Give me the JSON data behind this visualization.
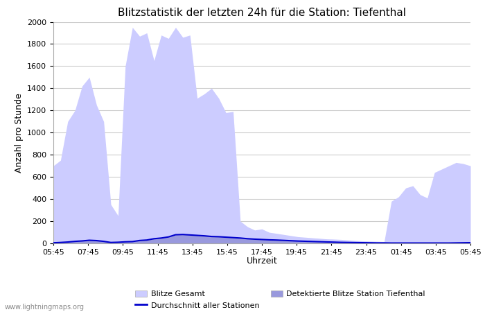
{
  "title": "Blitzstatistik der letzten 24h für die Station: Tiefenthal",
  "ylabel": "Anzahl pro Stunde",
  "xlabel": "Uhrzeit",
  "watermark": "www.lightningmaps.org",
  "x_labels": [
    "05:45",
    "07:45",
    "09:45",
    "11:45",
    "13:45",
    "15:45",
    "17:45",
    "19:45",
    "21:45",
    "23:45",
    "01:45",
    "03:45",
    "05:45"
  ],
  "ylim": [
    0,
    2000
  ],
  "yticks": [
    0,
    200,
    400,
    600,
    800,
    1000,
    1200,
    1400,
    1600,
    1800,
    2000
  ],
  "bg_color": "#ffffff",
  "grid_color": "#cccccc",
  "fill_color_gesamt": "#ccccff",
  "fill_color_station": "#9999dd",
  "line_color": "#0000cc",
  "legend_label_gesamt": "Blitze Gesamt",
  "legend_label_station": "Detektierte Blitze Station Tiefenthal",
  "legend_label_avg": "Durchschnitt aller Stationen",
  "gesamt_values": [
    700,
    750,
    1100,
    1200,
    1420,
    1500,
    1250,
    1100,
    350,
    250,
    1600,
    1950,
    1870,
    1900,
    1650,
    1880,
    1850,
    1950,
    1860,
    1880,
    1310,
    1350,
    1400,
    1310,
    1180,
    1190,
    200,
    150,
    120,
    130,
    100,
    90,
    80,
    70,
    60,
    55,
    50,
    45,
    40,
    38,
    35,
    30,
    25,
    22,
    20,
    18,
    16,
    380,
    420,
    500,
    520,
    440,
    410,
    640,
    670,
    700,
    730,
    720,
    700
  ],
  "station_values": [
    5,
    8,
    12,
    18,
    22,
    28,
    25,
    18,
    8,
    10,
    14,
    16,
    26,
    30,
    42,
    48,
    58,
    78,
    80,
    76,
    72,
    68,
    62,
    60,
    56,
    52,
    48,
    42,
    38,
    35,
    32,
    30,
    27,
    24,
    21,
    19,
    17,
    15,
    13,
    11,
    9,
    8,
    7,
    6,
    5,
    4,
    4,
    3,
    3,
    3,
    3,
    3,
    3,
    3,
    3,
    3,
    4,
    5,
    6
  ],
  "avg_values": [
    5,
    8,
    12,
    18,
    22,
    28,
    25,
    18,
    8,
    10,
    14,
    16,
    26,
    30,
    42,
    48,
    58,
    78,
    80,
    76,
    72,
    68,
    62,
    60,
    56,
    52,
    48,
    42,
    38,
    35,
    32,
    30,
    27,
    24,
    21,
    19,
    17,
    15,
    13,
    11,
    9,
    8,
    7,
    6,
    5,
    4,
    4,
    3,
    3,
    3,
    3,
    3,
    3,
    3,
    3,
    3,
    4,
    5,
    6
  ],
  "n_points": 59
}
